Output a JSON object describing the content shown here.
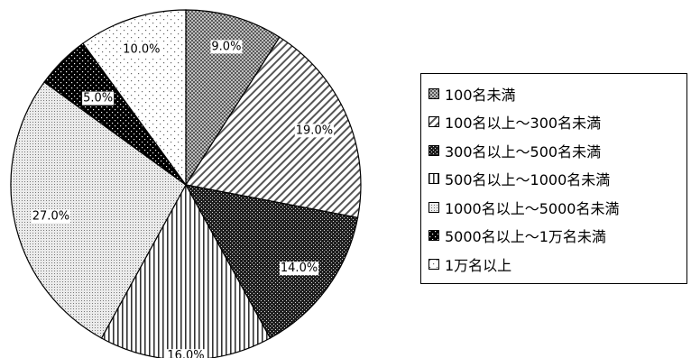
{
  "chart_data": {
    "type": "pie",
    "title": "",
    "categories": [
      "100名未満",
      "100名以上～300名未満",
      "300名以上～500名未満",
      "500名以上～1000名未満",
      "1000名以上～5000名未満",
      "5000名以上～1万名未満",
      "1万名以上"
    ],
    "values": [
      9.0,
      19.0,
      14.0,
      16.0,
      27.0,
      5.0,
      10.0
    ],
    "data_labels": [
      "9.0%",
      "19.0%",
      "14.0%",
      "16.0%",
      "27.0%",
      "5.0%",
      "10.0%"
    ],
    "legend_position": "right",
    "start_angle": "12 o'clock",
    "direction": "clockwise",
    "colors": [
      "#a0a0a0",
      "#ffffff",
      "#2a2a2a",
      "#ffffff",
      "#d8d8d8",
      "#000000",
      "#ffffff"
    ],
    "patterns": [
      "dots-dense",
      "diagonal-stripes",
      "dark-dots",
      "vertical-stripes",
      "fine-dots",
      "black-dots",
      "sparse-dots"
    ]
  }
}
